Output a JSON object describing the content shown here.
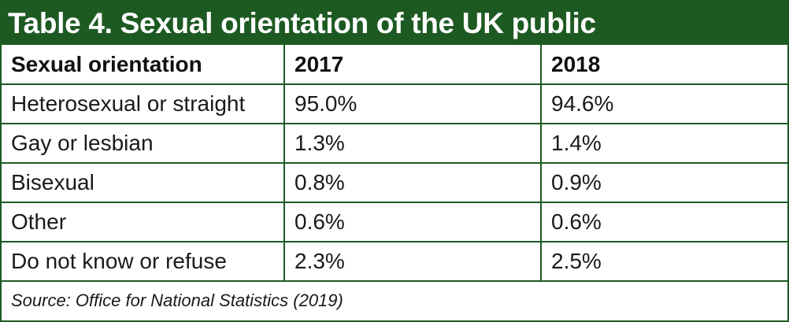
{
  "title": "Table 4. Sexual orientation of the UK public",
  "colors": {
    "accent": "#1d5a22",
    "text": "#1a1a1a",
    "background": "#ffffff"
  },
  "table": {
    "headers": [
      "Sexual orientation",
      "2017",
      "2018"
    ],
    "rows": [
      [
        "Heterosexual or straight",
        "95.0%",
        "94.6%"
      ],
      [
        "Gay or lesbian",
        "1.3%",
        "1.4%"
      ],
      [
        "Bisexual",
        "0.8%",
        "0.9%"
      ],
      [
        "Other",
        "0.6%",
        "0.6%"
      ],
      [
        "Do not know or refuse",
        "2.3%",
        "2.5%"
      ]
    ]
  },
  "source": "Source: Office for National Statistics (2019)"
}
